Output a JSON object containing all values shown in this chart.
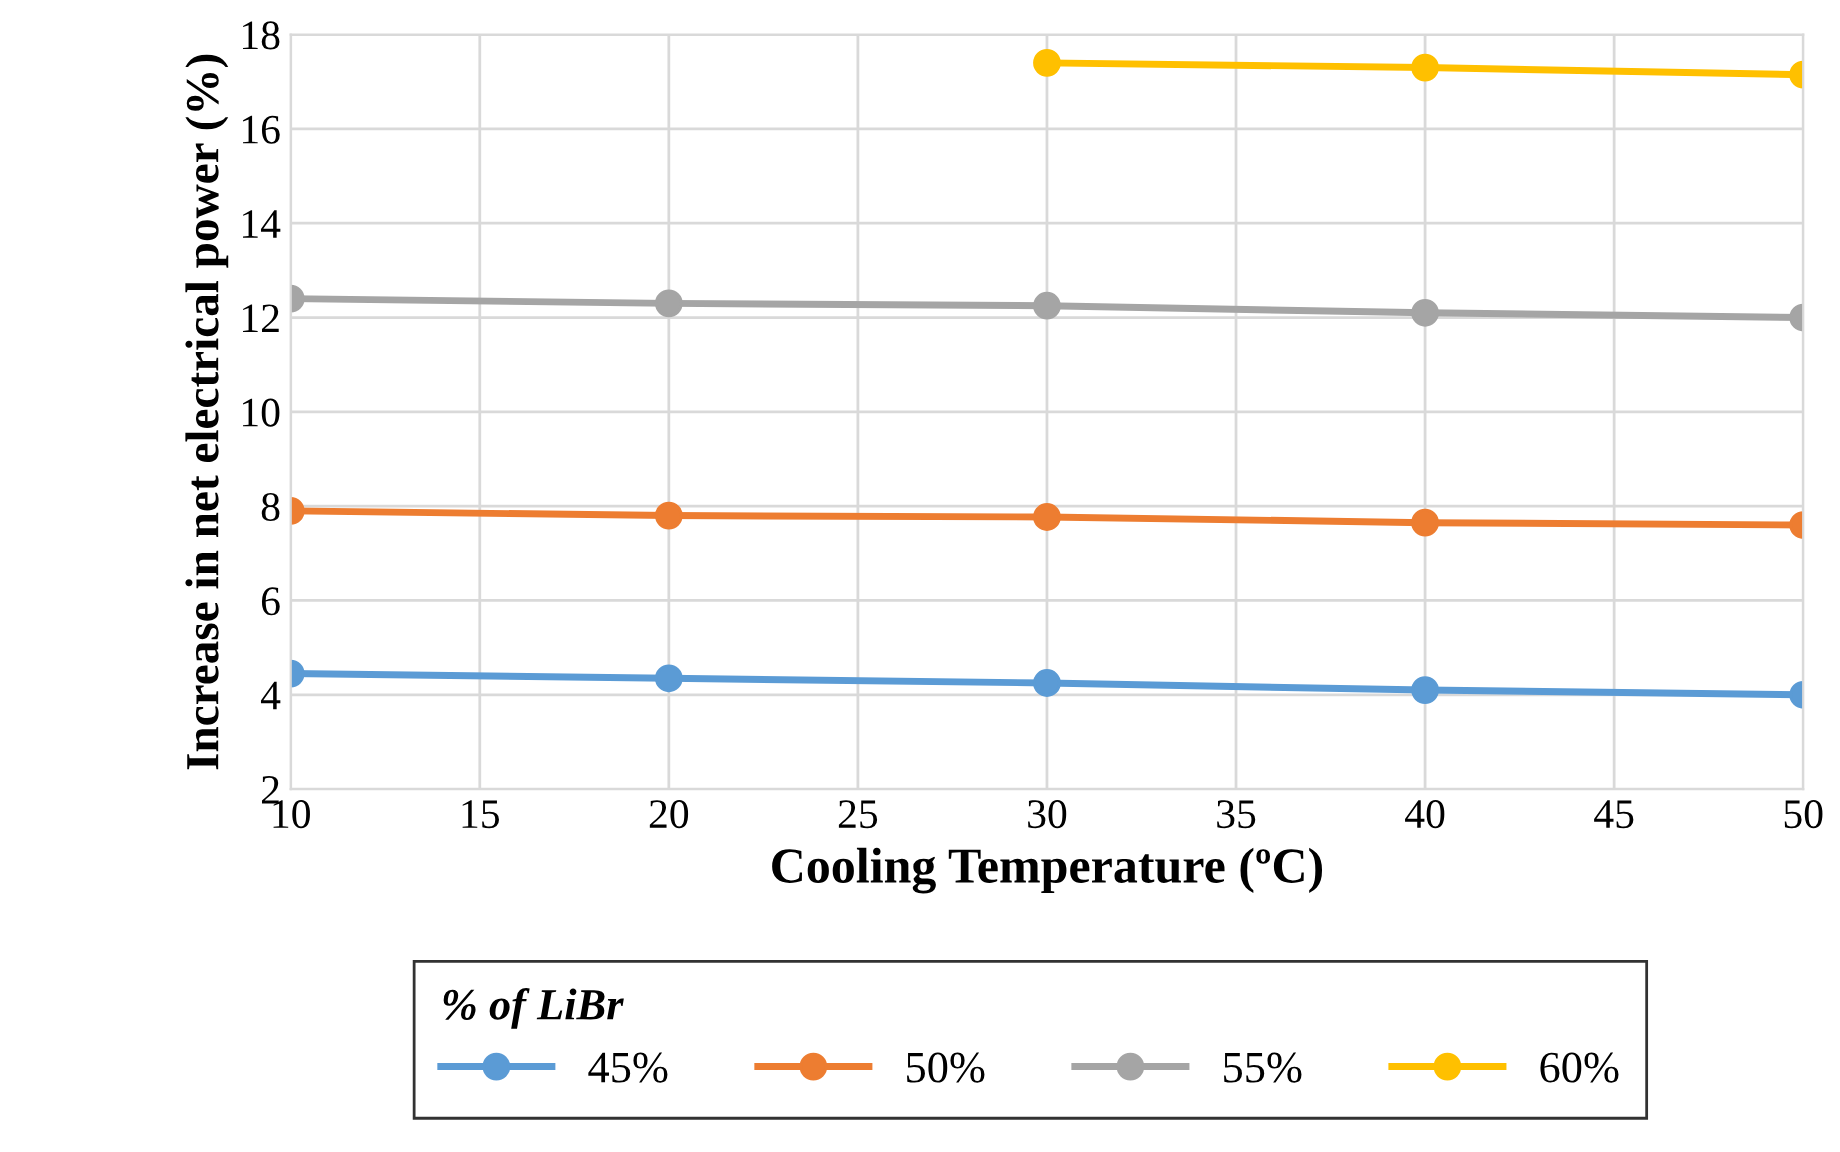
{
  "chart_data": {
    "type": "line",
    "xlabel": "Cooling Temperature (ºC)",
    "ylabel": "Increase in net electrical power (%)",
    "legend_title": "% of LiBr",
    "legend": "bottom",
    "grid": true,
    "xlim": [
      10,
      50
    ],
    "xticks": [
      10,
      15,
      20,
      25,
      30,
      35,
      40,
      45,
      50
    ],
    "ylim": [
      2,
      18
    ],
    "yticks": [
      2,
      4,
      6,
      8,
      10,
      12,
      14,
      16,
      18
    ],
    "x": [
      10,
      20,
      30,
      40,
      50
    ],
    "series": [
      {
        "name": "45%",
        "color": "#5b9bd5",
        "marker": "circle",
        "values": [
          4.45,
          4.35,
          4.25,
          4.1,
          4.0
        ]
      },
      {
        "name": "50%",
        "color": "#ed7d31",
        "marker": "circle",
        "values": [
          7.9,
          7.8,
          7.77,
          7.65,
          7.6
        ]
      },
      {
        "name": "55%",
        "color": "#a5a5a5",
        "marker": "circle",
        "values": [
          12.4,
          12.3,
          12.25,
          12.1,
          12.0
        ]
      },
      {
        "name": "60%",
        "color": "#ffc000",
        "marker": "circle",
        "values": [
          null,
          null,
          17.4,
          17.3,
          17.15
        ]
      }
    ]
  }
}
